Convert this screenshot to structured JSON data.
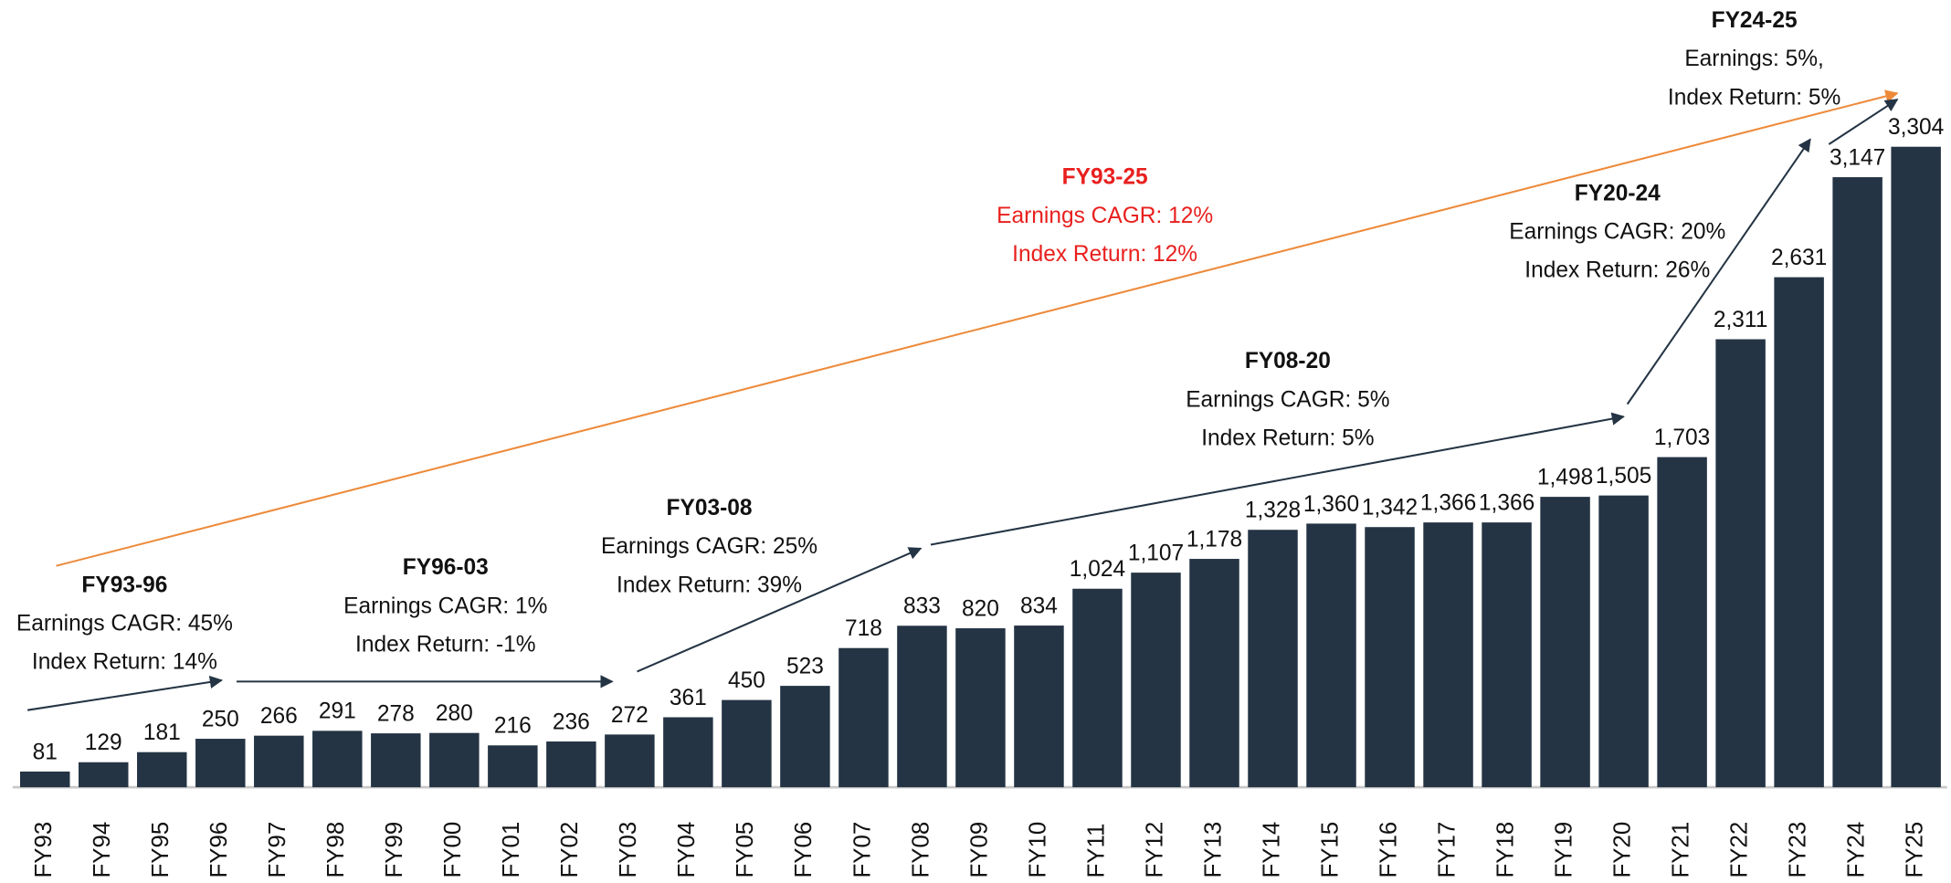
{
  "chart_data": {
    "type": "bar",
    "categories": [
      "FY93",
      "FY94",
      "FY95",
      "FY96",
      "FY97",
      "FY98",
      "FY99",
      "FY00",
      "FY01",
      "FY02",
      "FY03",
      "FY04",
      "FY05",
      "FY06",
      "FY07",
      "FY08",
      "FY09",
      "FY10",
      "FY11",
      "FY12",
      "FY13",
      "FY14",
      "FY15",
      "FY16",
      "FY17",
      "FY18",
      "FY19",
      "FY20",
      "FY21",
      "FY22",
      "FY23",
      "FY24",
      "FY25"
    ],
    "values": [
      81,
      129,
      181,
      250,
      266,
      291,
      278,
      280,
      216,
      236,
      272,
      361,
      450,
      523,
      718,
      833,
      820,
      834,
      1024,
      1107,
      1178,
      1328,
      1360,
      1342,
      1366,
      1366,
      1498,
      1505,
      1703,
      2311,
      2631,
      3147,
      3304
    ],
    "value_labels": [
      "81",
      "129",
      "181",
      "250",
      "266",
      "291",
      "278",
      "280",
      "216",
      "236",
      "272",
      "361",
      "450",
      "523",
      "718",
      "833",
      "820",
      "834",
      "1,024",
      "1,107",
      "1,178",
      "1,328",
      "1,360",
      "1,342",
      "1,366",
      "1,366",
      "1,498",
      "1,505",
      "1,703",
      "2,311",
      "2,631",
      "3,147",
      "3,304"
    ],
    "color": "#243444",
    "annotations": [
      {
        "title": "FY93-96",
        "lines": [
          "Earnings CAGR: 45%",
          "Index Return: 14%"
        ]
      },
      {
        "title": "FY96-03",
        "lines": [
          "Earnings CAGR: 1%",
          "Index Return: -1%"
        ]
      },
      {
        "title": "FY03-08",
        "lines": [
          "Earnings CAGR: 25%",
          "Index Return: 39%"
        ]
      },
      {
        "title": "FY08-20",
        "lines": [
          "Earnings CAGR: 5%",
          "Index Return: 5%"
        ]
      },
      {
        "title": "FY20-24",
        "lines": [
          "Earnings CAGR: 20%",
          "Index Return: 26%"
        ]
      },
      {
        "title": "FY24-25",
        "lines": [
          "Earnings: 5%,",
          "Index Return: 5%"
        ]
      },
      {
        "title": "FY93-25",
        "lines": [
          "Earnings CAGR: 12%",
          "Index Return: 12%"
        ],
        "color": "#e8201e"
      }
    ]
  }
}
